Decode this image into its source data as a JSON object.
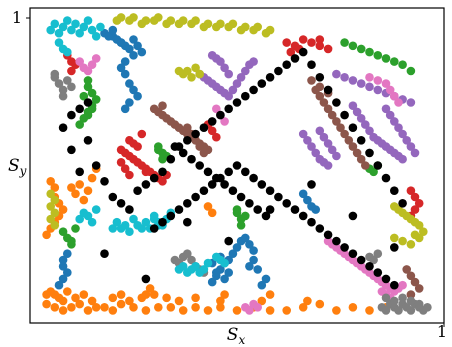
{
  "chart_data": {
    "type": "scatter",
    "title": "",
    "xlabel": "S_x",
    "ylabel": "S_y",
    "xlabel_main": "S",
    "xlabel_sub": "x",
    "ylabel_main": "S",
    "ylabel_sub": "y",
    "xlim": [
      0,
      1
    ],
    "ylim": [
      0,
      1
    ],
    "x_ticks": [
      {
        "value": 1,
        "label": "1"
      }
    ],
    "y_ticks": [
      {
        "value": 1,
        "label": "1"
      }
    ],
    "grid": false,
    "legend": "none",
    "series": [
      {
        "color": "#ff7f0e",
        "x": [
          0.04,
          0.06,
          0.08,
          0.1,
          0.12,
          0.14,
          0.16,
          0.18,
          0.2,
          0.22,
          0.25,
          0.28,
          0.31,
          0.34,
          0.37,
          0.4,
          0.43,
          0.46,
          0.5,
          0.54,
          0.58,
          0.62,
          0.66,
          0.7,
          0.74,
          0.78,
          0.82,
          0.86,
          0.04,
          0.05,
          0.06,
          0.07,
          0.08,
          0.09,
          0.11,
          0.13,
          0.15,
          0.04,
          0.05,
          0.06,
          0.07,
          0.08,
          0.07,
          0.06,
          0.06,
          0.05,
          0.2,
          0.22,
          0.24,
          0.27,
          0.3,
          0.33,
          0.36,
          0.4,
          0.56,
          0.58,
          0.46,
          0.47,
          0.1,
          0.11,
          0.12,
          0.13,
          0.14,
          0.43,
          0.44,
          0.15,
          0.16,
          0.28,
          0.29,
          0.67
        ],
        "y": [
          0.06,
          0.05,
          0.04,
          0.05,
          0.06,
          0.04,
          0.05,
          0.05,
          0.04,
          0.06,
          0.05,
          0.04,
          0.05,
          0.05,
          0.04,
          0.05,
          0.04,
          0.05,
          0.04,
          0.05,
          0.04,
          0.04,
          0.05,
          0.06,
          0.04,
          0.05,
          0.04,
          0.05,
          0.09,
          0.1,
          0.09,
          0.08,
          0.07,
          0.1,
          0.08,
          0.09,
          0.07,
          0.28,
          0.3,
          0.32,
          0.34,
          0.36,
          0.38,
          0.4,
          0.43,
          0.45,
          0.08,
          0.09,
          0.07,
          0.08,
          0.09,
          0.08,
          0.07,
          0.08,
          0.07,
          0.09,
          0.07,
          0.09,
          0.43,
          0.41,
          0.44,
          0.39,
          0.42,
          0.37,
          0.35,
          0.46,
          0.49,
          0.09,
          0.11,
          0.07
        ]
      },
      {
        "color": "#1f77b4",
        "x": [
          0.2,
          0.21,
          0.22,
          0.23,
          0.24,
          0.25,
          0.23,
          0.22,
          0.23,
          0.24,
          0.25,
          0.26,
          0.24,
          0.23,
          0.25,
          0.26,
          0.27,
          0.18,
          0.19,
          0.2,
          0.21,
          0.22,
          0.44,
          0.45,
          0.46,
          0.47,
          0.48,
          0.49,
          0.5,
          0.51,
          0.52,
          0.53,
          0.54,
          0.46,
          0.44,
          0.45,
          0.47,
          0.48,
          0.53,
          0.54,
          0.55,
          0.66,
          0.67,
          0.68,
          0.69,
          0.08,
          0.09,
          0.08,
          0.07,
          0.08,
          0.09,
          0.56,
          0.57
        ],
        "y": [
          0.91,
          0.9,
          0.89,
          0.88,
          0.87,
          0.85,
          0.83,
          0.81,
          0.79,
          0.76,
          0.74,
          0.72,
          0.7,
          0.68,
          0.9,
          0.88,
          0.86,
          0.92,
          0.91,
          0.93,
          0.9,
          0.89,
          0.13,
          0.15,
          0.17,
          0.19,
          0.2,
          0.22,
          0.24,
          0.26,
          0.27,
          0.25,
          0.23,
          0.21,
          0.19,
          0.16,
          0.14,
          0.16,
          0.18,
          0.2,
          0.17,
          0.41,
          0.39,
          0.37,
          0.36,
          0.18,
          0.16,
          0.14,
          0.12,
          0.2,
          0.22,
          0.12,
          0.14
        ]
      },
      {
        "color": "#2ca02c",
        "x": [
          0.76,
          0.78,
          0.8,
          0.82,
          0.84,
          0.86,
          0.88,
          0.9,
          0.92,
          0.14,
          0.15,
          0.16,
          0.15,
          0.14,
          0.13,
          0.14,
          0.12,
          0.31,
          0.32,
          0.33,
          0.32,
          0.31,
          0.08,
          0.09,
          0.1,
          0.11,
          0.1,
          0.5,
          0.51,
          0.52,
          0.51,
          0.5,
          0.82,
          0.83,
          0.84,
          0.13,
          0.14,
          0.15
        ],
        "y": [
          0.89,
          0.88,
          0.87,
          0.86,
          0.85,
          0.84,
          0.83,
          0.82,
          0.8,
          0.75,
          0.73,
          0.71,
          0.69,
          0.67,
          0.65,
          0.77,
          0.63,
          0.55,
          0.54,
          0.53,
          0.52,
          0.56,
          0.29,
          0.27,
          0.25,
          0.3,
          0.26,
          0.35,
          0.33,
          0.34,
          0.31,
          0.36,
          0.49,
          0.48,
          0.5,
          0.72,
          0.66,
          0.68
        ]
      },
      {
        "color": "#d62728",
        "x": [
          0.22,
          0.23,
          0.24,
          0.25,
          0.26,
          0.27,
          0.28,
          0.29,
          0.3,
          0.31,
          0.32,
          0.33,
          0.24,
          0.25,
          0.26,
          0.27,
          0.28,
          0.22,
          0.23,
          0.24,
          0.62,
          0.64,
          0.66,
          0.68,
          0.7,
          0.72,
          0.7,
          0.65,
          0.63,
          0.92,
          0.93,
          0.94,
          0.93,
          0.92,
          0.09,
          0.1,
          0.11,
          0.1,
          0.44,
          0.45,
          0.43
        ],
        "y": [
          0.55,
          0.54,
          0.53,
          0.52,
          0.51,
          0.5,
          0.49,
          0.48,
          0.47,
          0.46,
          0.45,
          0.47,
          0.58,
          0.57,
          0.56,
          0.6,
          0.48,
          0.51,
          0.49,
          0.47,
          0.89,
          0.88,
          0.9,
          0.89,
          0.88,
          0.87,
          0.9,
          0.87,
          0.86,
          0.42,
          0.4,
          0.38,
          0.36,
          0.34,
          0.85,
          0.83,
          0.82,
          0.8,
          0.61,
          0.59,
          0.63
        ]
      },
      {
        "color": "#9467bd",
        "x": [
          0.41,
          0.42,
          0.43,
          0.44,
          0.45,
          0.46,
          0.47,
          0.48,
          0.49,
          0.5,
          0.51,
          0.52,
          0.53,
          0.54,
          0.44,
          0.45,
          0.46,
          0.47,
          0.48,
          0.66,
          0.67,
          0.68,
          0.69,
          0.7,
          0.71,
          0.72,
          0.74,
          0.76,
          0.78,
          0.8,
          0.82,
          0.84,
          0.86,
          0.88,
          0.9,
          0.92,
          0.78,
          0.79,
          0.8,
          0.81,
          0.82,
          0.83,
          0.84,
          0.85,
          0.86,
          0.87,
          0.88,
          0.89,
          0.9,
          0.7,
          0.71,
          0.72,
          0.73,
          0.74,
          0.86,
          0.87,
          0.88,
          0.89,
          0.9,
          0.91,
          0.92,
          0.93
        ],
        "y": [
          0.79,
          0.78,
          0.77,
          0.76,
          0.75,
          0.74,
          0.73,
          0.72,
          0.74,
          0.76,
          0.78,
          0.8,
          0.82,
          0.83,
          0.85,
          0.84,
          0.83,
          0.81,
          0.79,
          0.6,
          0.58,
          0.56,
          0.54,
          0.52,
          0.51,
          0.5,
          0.79,
          0.78,
          0.77,
          0.76,
          0.75,
          0.74,
          0.73,
          0.72,
          0.71,
          0.7,
          0.69,
          0.67,
          0.65,
          0.63,
          0.61,
          0.59,
          0.58,
          0.57,
          0.56,
          0.55,
          0.54,
          0.53,
          0.52,
          0.61,
          0.59,
          0.57,
          0.55,
          0.53,
          0.68,
          0.66,
          0.64,
          0.62,
          0.6,
          0.58,
          0.56,
          0.54
        ]
      },
      {
        "color": "#8c564b",
        "x": [
          0.32,
          0.33,
          0.34,
          0.35,
          0.36,
          0.37,
          0.38,
          0.39,
          0.4,
          0.41,
          0.42,
          0.43,
          0.3,
          0.31,
          0.32,
          0.69,
          0.7,
          0.71,
          0.72,
          0.73,
          0.74,
          0.75,
          0.76,
          0.77,
          0.78,
          0.79,
          0.8,
          0.81,
          0.91,
          0.92,
          0.93,
          0.94,
          0.92,
          0.38,
          0.39,
          0.4,
          0.41,
          0.42,
          0.68,
          0.7,
          0.72
        ],
        "y": [
          0.66,
          0.65,
          0.64,
          0.63,
          0.62,
          0.61,
          0.6,
          0.59,
          0.58,
          0.57,
          0.56,
          0.55,
          0.68,
          0.67,
          0.69,
          0.74,
          0.72,
          0.7,
          0.68,
          0.66,
          0.64,
          0.62,
          0.6,
          0.58,
          0.56,
          0.54,
          0.52,
          0.5,
          0.17,
          0.15,
          0.13,
          0.11,
          0.09,
          0.62,
          0.6,
          0.58,
          0.56,
          0.54,
          0.77,
          0.75,
          0.73
        ]
      },
      {
        "color": "#e377c2",
        "x": [
          0.72,
          0.73,
          0.74,
          0.75,
          0.76,
          0.77,
          0.78,
          0.79,
          0.8,
          0.81,
          0.82,
          0.83,
          0.84,
          0.85,
          0.86,
          0.87,
          0.88,
          0.89,
          0.9,
          0.82,
          0.84,
          0.86,
          0.87,
          0.88,
          0.89,
          0.12,
          0.13,
          0.14,
          0.15,
          0.16,
          0.52,
          0.53,
          0.54,
          0.55,
          0.45,
          0.46,
          0.47,
          0.85,
          0.86,
          0.87
        ],
        "y": [
          0.26,
          0.25,
          0.24,
          0.23,
          0.22,
          0.21,
          0.2,
          0.19,
          0.18,
          0.17,
          0.16,
          0.15,
          0.14,
          0.13,
          0.12,
          0.11,
          0.1,
          0.11,
          0.12,
          0.78,
          0.77,
          0.76,
          0.74,
          0.72,
          0.7,
          0.83,
          0.81,
          0.8,
          0.82,
          0.84,
          0.05,
          0.04,
          0.06,
          0.05,
          0.68,
          0.66,
          0.64,
          0.1,
          0.09,
          0.08
        ]
      },
      {
        "color": "#7f7f7f",
        "x": [
          0.06,
          0.07,
          0.08,
          0.09,
          0.1,
          0.06,
          0.08,
          0.35,
          0.36,
          0.37,
          0.38,
          0.39,
          0.4,
          0.41,
          0.42,
          0.85,
          0.86,
          0.87,
          0.88,
          0.89,
          0.9,
          0.91,
          0.92,
          0.93,
          0.94,
          0.95,
          0.96,
          0.86,
          0.88,
          0.9,
          0.92,
          0.94,
          0.82,
          0.83,
          0.84
        ],
        "y": [
          0.78,
          0.76,
          0.74,
          0.77,
          0.75,
          0.79,
          0.72,
          0.2,
          0.19,
          0.21,
          0.22,
          0.2,
          0.18,
          0.17,
          0.16,
          0.05,
          0.04,
          0.06,
          0.05,
          0.04,
          0.06,
          0.05,
          0.04,
          0.06,
          0.05,
          0.04,
          0.05,
          0.08,
          0.07,
          0.08,
          0.07,
          0.06,
          0.21,
          0.2,
          0.22
        ]
      },
      {
        "color": "#bcbd22",
        "x": [
          0.22,
          0.25,
          0.28,
          0.31,
          0.34,
          0.37,
          0.4,
          0.43,
          0.46,
          0.49,
          0.52,
          0.55,
          0.58,
          0.21,
          0.24,
          0.27,
          0.3,
          0.33,
          0.36,
          0.39,
          0.42,
          0.45,
          0.48,
          0.51,
          0.54,
          0.57,
          0.36,
          0.37,
          0.38,
          0.39,
          0.4,
          0.41,
          0.88,
          0.89,
          0.9,
          0.91,
          0.92,
          0.93,
          0.94,
          0.88,
          0.9,
          0.92,
          0.05,
          0.06,
          0.05,
          0.06,
          0.05,
          0.06,
          0.93,
          0.94,
          0.95
        ],
        "y": [
          0.97,
          0.97,
          0.96,
          0.97,
          0.96,
          0.96,
          0.96,
          0.95,
          0.95,
          0.95,
          0.94,
          0.94,
          0.93,
          0.96,
          0.96,
          0.95,
          0.96,
          0.95,
          0.95,
          0.95,
          0.94,
          0.94,
          0.94,
          0.93,
          0.93,
          0.92,
          0.8,
          0.79,
          0.8,
          0.78,
          0.81,
          0.79,
          0.37,
          0.36,
          0.35,
          0.34,
          0.33,
          0.32,
          0.31,
          0.27,
          0.26,
          0.25,
          0.41,
          0.39,
          0.37,
          0.35,
          0.33,
          0.31,
          0.28,
          0.27,
          0.29
        ]
      },
      {
        "color": "#17becf",
        "x": [
          0.05,
          0.06,
          0.07,
          0.08,
          0.09,
          0.1,
          0.11,
          0.12,
          0.13,
          0.14,
          0.15,
          0.16,
          0.17,
          0.07,
          0.08,
          0.09,
          0.2,
          0.21,
          0.22,
          0.23,
          0.24,
          0.25,
          0.26,
          0.27,
          0.3,
          0.31,
          0.32,
          0.33,
          0.34,
          0.36,
          0.37,
          0.38,
          0.39,
          0.4,
          0.41,
          0.42,
          0.43,
          0.45,
          0.46,
          0.47,
          0.12,
          0.13,
          0.14,
          0.15,
          0.16,
          0.28,
          0.29,
          0.3,
          0.31
        ],
        "y": [
          0.93,
          0.95,
          0.92,
          0.94,
          0.96,
          0.93,
          0.95,
          0.92,
          0.94,
          0.96,
          0.93,
          0.91,
          0.94,
          0.89,
          0.87,
          0.86,
          0.3,
          0.32,
          0.3,
          0.31,
          0.29,
          0.33,
          0.31,
          0.3,
          0.34,
          0.32,
          0.31,
          0.33,
          0.35,
          0.17,
          0.18,
          0.16,
          0.17,
          0.18,
          0.16,
          0.17,
          0.19,
          0.21,
          0.2,
          0.19,
          0.33,
          0.35,
          0.34,
          0.32,
          0.36,
          0.32,
          0.3,
          0.33,
          0.31
        ]
      },
      {
        "color": "#000000",
        "x": [
          0.08,
          0.1,
          0.12,
          0.14,
          0.16,
          0.18,
          0.2,
          0.22,
          0.24,
          0.26,
          0.28,
          0.3,
          0.32,
          0.34,
          0.36,
          0.38,
          0.4,
          0.42,
          0.44,
          0.46,
          0.48,
          0.5,
          0.52,
          0.54,
          0.56,
          0.58,
          0.6,
          0.62,
          0.64,
          0.66,
          0.68,
          0.7,
          0.72,
          0.74,
          0.76,
          0.78,
          0.8,
          0.82,
          0.84,
          0.86,
          0.88,
          0.9,
          0.3,
          0.32,
          0.34,
          0.36,
          0.38,
          0.4,
          0.42,
          0.44,
          0.46,
          0.48,
          0.5,
          0.52,
          0.54,
          0.56,
          0.58,
          0.6,
          0.62,
          0.64,
          0.66,
          0.68,
          0.7,
          0.72,
          0.74,
          0.76,
          0.78,
          0.8,
          0.82,
          0.84,
          0.86,
          0.88,
          0.18,
          0.28,
          0.38,
          0.48,
          0.58,
          0.68,
          0.78,
          0.88,
          0.1,
          0.12,
          0.14,
          0.35,
          0.37,
          0.39,
          0.41,
          0.43,
          0.45,
          0.47,
          0.49,
          0.51,
          0.53,
          0.55,
          0.57
        ],
        "y": [
          0.62,
          0.55,
          0.48,
          0.58,
          0.5,
          0.45,
          0.4,
          0.38,
          0.36,
          0.42,
          0.44,
          0.46,
          0.48,
          0.52,
          0.56,
          0.58,
          0.6,
          0.62,
          0.64,
          0.66,
          0.68,
          0.7,
          0.72,
          0.74,
          0.76,
          0.78,
          0.8,
          0.82,
          0.84,
          0.86,
          0.82,
          0.78,
          0.74,
          0.7,
          0.66,
          0.62,
          0.58,
          0.54,
          0.5,
          0.46,
          0.42,
          0.38,
          0.3,
          0.32,
          0.34,
          0.36,
          0.38,
          0.4,
          0.42,
          0.44,
          0.46,
          0.48,
          0.5,
          0.48,
          0.46,
          0.44,
          0.42,
          0.4,
          0.38,
          0.36,
          0.34,
          0.32,
          0.3,
          0.28,
          0.26,
          0.24,
          0.22,
          0.2,
          0.18,
          0.16,
          0.14,
          0.12,
          0.22,
          0.14,
          0.32,
          0.26,
          0.36,
          0.44,
          0.34,
          0.24,
          0.66,
          0.68,
          0.7,
          0.56,
          0.54,
          0.52,
          0.5,
          0.48,
          0.46,
          0.44,
          0.42,
          0.4,
          0.38,
          0.36,
          0.34
        ]
      }
    ]
  }
}
